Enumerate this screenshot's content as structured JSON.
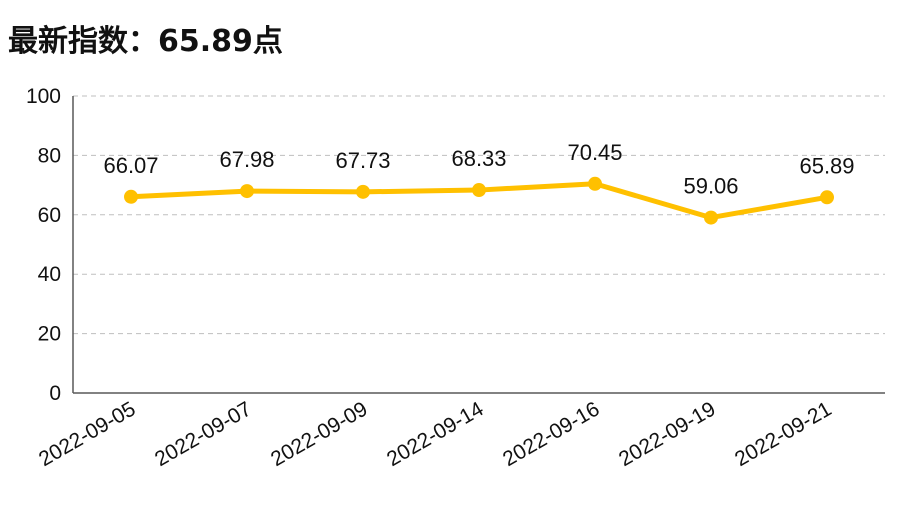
{
  "title": "最新指数：65.89点",
  "colors": {
    "series": "#FFC000",
    "grid": "#BFBFBF",
    "axis": "#595959"
  },
  "chart_data": {
    "type": "line",
    "title": "最新指数：65.89点",
    "categories": [
      "2022-09-05",
      "2022-09-07",
      "2022-09-09",
      "2022-09-14",
      "2022-09-16",
      "2022-09-19",
      "2022-09-21"
    ],
    "series": [
      {
        "values": [
          66.07,
          67.98,
          67.73,
          68.33,
          70.45,
          59.06,
          65.89
        ]
      }
    ],
    "data_labels": [
      "66.07",
      "67.98",
      "67.73",
      "68.33",
      "70.45",
      "59.06",
      "65.89"
    ],
    "y_ticks": [
      0,
      20,
      40,
      60,
      80,
      100
    ],
    "ylim": [
      0,
      100
    ],
    "xlabel": "",
    "ylabel": "",
    "grid": true,
    "legend": "none"
  }
}
